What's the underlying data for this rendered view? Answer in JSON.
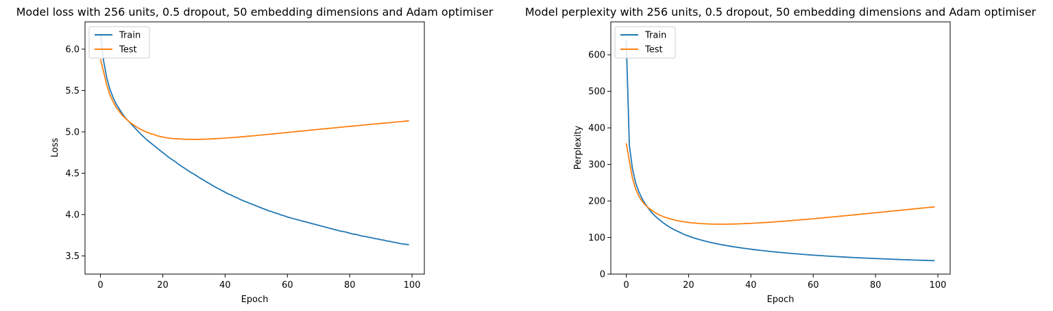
{
  "chart_data": [
    {
      "type": "line",
      "title": "Model loss with 256 units, 0.5 dropout, 50 embedding dimensions and Adam optimiser",
      "xlabel": "Epoch",
      "ylabel": "Loss",
      "xlim": [
        -4.95,
        103.95
      ],
      "ylim": [
        3.28,
        6.33
      ],
      "xticks": [
        0,
        20,
        40,
        60,
        80,
        100
      ],
      "yticks": [
        3.5,
        4.0,
        4.5,
        5.0,
        5.5,
        6.0
      ],
      "ytick_labels": [
        "3.5",
        "4.0",
        "4.5",
        "5.0",
        "5.5",
        "6.0"
      ],
      "grid": false,
      "legend": "upper left",
      "x": [
        0,
        1,
        2,
        3,
        4,
        5,
        6,
        7,
        8,
        9,
        10,
        11,
        12,
        13,
        14,
        15,
        16,
        17,
        18,
        19,
        20,
        21,
        22,
        23,
        24,
        25,
        26,
        27,
        28,
        29,
        30,
        31,
        32,
        33,
        34,
        35,
        36,
        37,
        38,
        39,
        40,
        41,
        42,
        43,
        44,
        45,
        46,
        47,
        48,
        49,
        50,
        51,
        52,
        53,
        54,
        55,
        56,
        57,
        58,
        59,
        60,
        61,
        62,
        63,
        64,
        65,
        66,
        67,
        68,
        69,
        70,
        71,
        72,
        73,
        74,
        75,
        76,
        77,
        78,
        79,
        80,
        81,
        82,
        83,
        84,
        85,
        86,
        87,
        88,
        89,
        90,
        91,
        92,
        93,
        94,
        95,
        96,
        97,
        98,
        99
      ],
      "series": [
        {
          "name": "Train",
          "color": "#1f77b4",
          "values": [
            6.19,
            5.86,
            5.66,
            5.52,
            5.42,
            5.34,
            5.28,
            5.22,
            5.17,
            5.13,
            5.09,
            5.05,
            5.01,
            4.97,
            4.935,
            4.9,
            4.87,
            4.84,
            4.81,
            4.78,
            4.75,
            4.72,
            4.69,
            4.665,
            4.64,
            4.61,
            4.585,
            4.56,
            4.535,
            4.51,
            4.49,
            4.465,
            4.44,
            4.42,
            4.395,
            4.375,
            4.35,
            4.33,
            4.31,
            4.29,
            4.27,
            4.25,
            4.235,
            4.215,
            4.2,
            4.18,
            4.165,
            4.15,
            4.135,
            4.12,
            4.105,
            4.09,
            4.075,
            4.06,
            4.045,
            4.035,
            4.02,
            4.01,
            3.995,
            3.985,
            3.97,
            3.96,
            3.95,
            3.94,
            3.93,
            3.92,
            3.91,
            3.9,
            3.89,
            3.88,
            3.87,
            3.86,
            3.85,
            3.84,
            3.83,
            3.82,
            3.81,
            3.8,
            3.795,
            3.785,
            3.775,
            3.765,
            3.76,
            3.75,
            3.74,
            3.735,
            3.725,
            3.72,
            3.71,
            3.705,
            3.695,
            3.69,
            3.68,
            3.675,
            3.665,
            3.66,
            3.65,
            3.645,
            3.64,
            3.635
          ]
        },
        {
          "name": "Test",
          "color": "#ff7f0e",
          "values": [
            5.88,
            5.73,
            5.57,
            5.45,
            5.37,
            5.3,
            5.25,
            5.2,
            5.165,
            5.13,
            5.1,
            5.075,
            5.05,
            5.03,
            5.01,
            4.995,
            4.98,
            4.97,
            4.955,
            4.945,
            4.937,
            4.93,
            4.925,
            4.92,
            4.917,
            4.915,
            4.913,
            4.911,
            4.91,
            4.91,
            4.909,
            4.909,
            4.91,
            4.911,
            4.912,
            4.914,
            4.916,
            4.918,
            4.92,
            4.922,
            4.925,
            4.928,
            4.93,
            4.933,
            4.936,
            4.939,
            4.942,
            4.946,
            4.949,
            4.952,
            4.956,
            4.96,
            4.963,
            4.967,
            4.97,
            4.974,
            4.978,
            4.981,
            4.985,
            4.989,
            4.993,
            4.996,
            5.0,
            5.004,
            5.008,
            5.011,
            5.015,
            5.019,
            5.023,
            5.026,
            5.03,
            5.034,
            5.037,
            5.041,
            5.045,
            5.048,
            5.052,
            5.056,
            5.059,
            5.063,
            5.066,
            5.07,
            5.074,
            5.077,
            5.081,
            5.084,
            5.088,
            5.091,
            5.095,
            5.098,
            5.102,
            5.105,
            5.109,
            5.112,
            5.116,
            5.119,
            5.123,
            5.126,
            5.13,
            5.133
          ]
        }
      ]
    },
    {
      "type": "line",
      "title": "Model perplexity with 256 units, 0.5 dropout, 50 embedding dimensions and Adam optimiser",
      "xlabel": "Epoch",
      "ylabel": "Perplexity",
      "xlim": [
        -4.95,
        103.95
      ],
      "ylim": [
        0,
        690
      ],
      "xticks": [
        0,
        20,
        40,
        60,
        80,
        100
      ],
      "yticks": [
        0,
        100,
        200,
        300,
        400,
        500,
        600
      ],
      "ytick_labels": [
        "0",
        "100",
        "200",
        "300",
        "400",
        "500",
        "600"
      ],
      "grid": false,
      "legend": "upper left",
      "x": [
        0,
        1,
        2,
        3,
        4,
        5,
        6,
        7,
        8,
        9,
        10,
        11,
        12,
        13,
        14,
        15,
        16,
        17,
        18,
        19,
        20,
        21,
        22,
        23,
        24,
        25,
        26,
        27,
        28,
        29,
        30,
        31,
        32,
        33,
        34,
        35,
        36,
        37,
        38,
        39,
        40,
        41,
        42,
        43,
        44,
        45,
        46,
        47,
        48,
        49,
        50,
        51,
        52,
        53,
        54,
        55,
        56,
        57,
        58,
        59,
        60,
        61,
        62,
        63,
        64,
        65,
        66,
        67,
        68,
        69,
        70,
        71,
        72,
        73,
        74,
        75,
        76,
        77,
        78,
        79,
        80,
        81,
        82,
        83,
        84,
        85,
        86,
        87,
        88,
        89,
        90,
        91,
        92,
        93,
        94,
        95,
        96,
        97,
        98,
        99
      ],
      "series": [
        {
          "name": "Train",
          "color": "#1f77b4",
          "values": [
            640,
            352,
            288,
            250,
            226,
            208,
            193,
            181,
            170,
            161,
            153,
            146,
            139.5,
            133.5,
            128,
            123.3,
            119,
            115,
            111,
            107,
            104,
            101,
            98.2,
            95.6,
            93.2,
            90.9,
            88.8,
            86.8,
            84.9,
            83.1,
            81.4,
            79.8,
            78.3,
            76.8,
            75.4,
            74.1,
            72.8,
            71.6,
            70.4,
            69.2,
            68.1,
            67,
            66,
            65,
            64,
            63.1,
            62.2,
            61.3,
            60.4,
            59.6,
            58.8,
            58,
            57.2,
            56.5,
            55.8,
            55.1,
            54.4,
            53.8,
            53.1,
            52.5,
            51.9,
            51.3,
            50.7,
            50.2,
            49.6,
            49.1,
            48.6,
            48.1,
            47.6,
            47.1,
            46.6,
            46.2,
            45.7,
            45.3,
            44.9,
            44.5,
            44.1,
            43.7,
            43.3,
            42.9,
            42.5,
            42.2,
            41.8,
            41.5,
            41.1,
            40.8,
            40.5,
            40.1,
            39.8,
            39.5,
            39.2,
            38.9,
            38.6,
            38.3,
            38,
            37.8,
            37.5,
            37.2,
            37,
            36.7
          ]
        },
        {
          "name": "Test",
          "color": "#ff7f0e",
          "values": [
            358,
            309,
            262,
            233,
            214,
            200,
            190,
            182,
            175.5,
            169.5,
            164.5,
            160.5,
            157,
            154,
            151.5,
            149,
            147,
            145.2,
            143.7,
            142.4,
            141.3,
            140.3,
            139.5,
            138.8,
            138.2,
            137.7,
            137.3,
            137,
            136.8,
            136.6,
            136.5,
            136.5,
            136.6,
            136.7,
            136.9,
            137.1,
            137.4,
            137.7,
            138.1,
            138.5,
            138.9,
            139.3,
            139.8,
            140.3,
            140.8,
            141.3,
            141.9,
            142.5,
            143.1,
            143.7,
            144.3,
            145,
            145.7,
            146.3,
            147,
            147.7,
            148.5,
            149.2,
            149.9,
            150.7,
            151.4,
            152.2,
            153,
            153.8,
            154.6,
            155.4,
            156.2,
            157,
            157.8,
            158.6,
            159.4,
            160.3,
            161.1,
            161.9,
            162.8,
            163.6,
            164.4,
            165.3,
            166.1,
            167,
            167.8,
            168.7,
            169.5,
            170.4,
            171.2,
            172.1,
            172.9,
            173.8,
            174.6,
            175.5,
            176.3,
            177.2,
            178,
            178.9,
            179.7,
            180.6,
            181.4,
            182.3,
            183.1,
            184
          ]
        }
      ]
    }
  ]
}
